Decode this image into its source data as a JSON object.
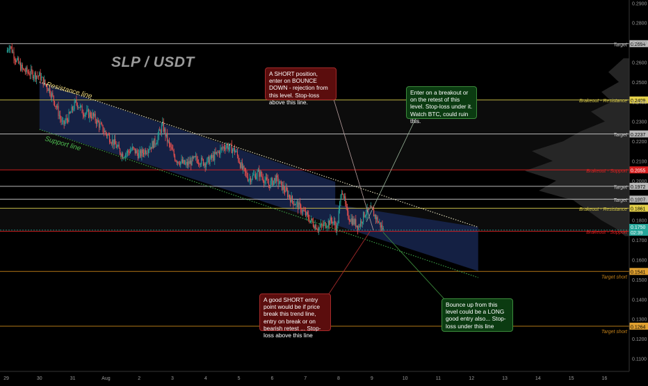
{
  "chart_data": {
    "type": "candlestick",
    "title": "SLP / USDT",
    "ylim": [
      0.1035,
      0.2915
    ],
    "y_ticks": [
      0.11,
      0.12,
      0.13,
      0.14,
      0.15,
      0.16,
      0.17,
      0.18,
      0.19,
      0.2,
      0.21,
      0.22,
      0.23,
      0.24,
      0.25,
      0.26,
      0.27,
      0.28,
      0.29
    ],
    "y_tick_labels": [
      "0.1100",
      "0.1200",
      "0.1300",
      "0.1400",
      "0.1500",
      "0.1600",
      "0.1700",
      "0.1800",
      "0.1900",
      "0.2000",
      "0.2100",
      "0.2200",
      "0.2300",
      "0.2400",
      "0.2500",
      "0.2600",
      "0.2700",
      "0.2800",
      "0.2900"
    ],
    "x_ticks": [
      {
        "t": 0.0,
        "label": "29"
      },
      {
        "t": 1.0,
        "label": "30"
      },
      {
        "t": 2.0,
        "label": "31"
      },
      {
        "t": 3.0,
        "label": "Aug"
      },
      {
        "t": 4.0,
        "label": "2"
      },
      {
        "t": 5.0,
        "label": "3"
      },
      {
        "t": 6.0,
        "label": "4"
      },
      {
        "t": 7.0,
        "label": "5"
      },
      {
        "t": 8.0,
        "label": "6"
      },
      {
        "t": 9.0,
        "label": "7"
      },
      {
        "t": 10.0,
        "label": "8"
      },
      {
        "t": 11.0,
        "label": "9"
      },
      {
        "t": 12.0,
        "label": "10"
      },
      {
        "t": 13.0,
        "label": "11"
      },
      {
        "t": 14.0,
        "label": "12"
      },
      {
        "t": 15.0,
        "label": "13"
      },
      {
        "t": 16.0,
        "label": "14"
      },
      {
        "t": 17.0,
        "label": "15"
      },
      {
        "t": 18.0,
        "label": "16"
      }
    ],
    "price_path": [
      [
        0.0,
        0.265
      ],
      [
        0.1,
        0.269
      ],
      [
        0.3,
        0.261
      ],
      [
        0.5,
        0.256
      ],
      [
        0.8,
        0.254
      ],
      [
        1.0,
        0.253
      ],
      [
        1.3,
        0.246
      ],
      [
        1.5,
        0.238
      ],
      [
        1.7,
        0.228
      ],
      [
        1.9,
        0.233
      ],
      [
        2.1,
        0.24
      ],
      [
        2.3,
        0.235
      ],
      [
        2.6,
        0.233
      ],
      [
        2.9,
        0.226
      ],
      [
        3.2,
        0.22
      ],
      [
        3.5,
        0.213
      ],
      [
        3.8,
        0.216
      ],
      [
        4.0,
        0.213
      ],
      [
        4.3,
        0.217
      ],
      [
        4.5,
        0.22
      ],
      [
        4.7,
        0.228
      ],
      [
        4.9,
        0.218
      ],
      [
        5.1,
        0.211
      ],
      [
        5.4,
        0.208
      ],
      [
        5.7,
        0.211
      ],
      [
        6.0,
        0.209
      ],
      [
        6.3,
        0.213
      ],
      [
        6.6,
        0.218
      ],
      [
        6.9,
        0.215
      ],
      [
        7.1,
        0.206
      ],
      [
        7.3,
        0.201
      ],
      [
        7.6,
        0.204
      ],
      [
        7.9,
        0.198
      ],
      [
        8.1,
        0.201
      ],
      [
        8.4,
        0.195
      ],
      [
        8.6,
        0.19
      ],
      [
        8.8,
        0.187
      ],
      [
        9.0,
        0.183
      ],
      [
        9.2,
        0.179
      ],
      [
        9.4,
        0.176
      ],
      [
        9.6,
        0.178
      ],
      [
        9.8,
        0.18
      ],
      [
        9.95,
        0.176
      ],
      [
        10.1,
        0.197
      ],
      [
        10.25,
        0.183
      ],
      [
        10.4,
        0.18
      ],
      [
        10.6,
        0.177
      ],
      [
        10.8,
        0.184
      ],
      [
        11.0,
        0.185
      ],
      [
        11.2,
        0.179
      ],
      [
        11.35,
        0.175
      ]
    ],
    "levels": [
      {
        "price": 0.2694,
        "label": "Target",
        "tag": "0.2694",
        "color": "#cfcfcf",
        "tag_bg": "#b8b8b8",
        "tag_fg": "#000"
      },
      {
        "price": 0.2409,
        "label": "Brakeout - Resistance",
        "tag": "0.2409",
        "color": "#d6c84a",
        "tag_bg": "#e6d24a",
        "tag_fg": "#000"
      },
      {
        "price": 0.2237,
        "label": "Target",
        "tag": "0.2237",
        "color": "#cfcfcf",
        "tag_bg": "#b8b8b8",
        "tag_fg": "#000"
      },
      {
        "price": 0.2055,
        "label": "Brakeout - Support",
        "tag": "0.2055",
        "color": "#e02020",
        "tag_bg": "#d81f1f",
        "tag_fg": "#fff"
      },
      {
        "price": 0.1972,
        "label": "Target",
        "tag": "0.1972",
        "color": "#cfcfcf",
        "tag_bg": "#b8b8b8",
        "tag_fg": "#000"
      },
      {
        "price": 0.1907,
        "label": "Target",
        "tag": "0.1907",
        "color": "#cfcfcf",
        "tag_bg": "#b8b8b8",
        "tag_fg": "#000"
      },
      {
        "price": 0.1861,
        "label": "Brakeout - Resistance",
        "tag": "0.1861",
        "color": "#d6c84a",
        "tag_bg": "#e6d24a",
        "tag_fg": "#000"
      },
      {
        "price": 0.1744,
        "label": "Brakeout - Support",
        "tag": "0.1744",
        "color": "#e02020",
        "tag_bg": "#d81f1f",
        "tag_fg": "#fff"
      },
      {
        "price": 0.1541,
        "label": "Target short",
        "tag": "0.1541",
        "color": "#c8841a",
        "tag_bg": "#e0a030",
        "tag_fg": "#000"
      },
      {
        "price": 0.1264,
        "label": "Target short",
        "tag": "0.1264",
        "color": "#c8841a",
        "tag_bg": "#e0a030",
        "tag_fg": "#000"
      }
    ],
    "current_price": {
      "price": 0.175,
      "tag": "0.1750",
      "countdown": "02:39",
      "color": "#26a69a"
    },
    "trendlines": [
      {
        "name": "Resistance line",
        "from": [
          1.0,
          0.25
        ],
        "to": [
          14.2,
          0.1765
        ],
        "color": "#e8e4c0"
      },
      {
        "name": "Support line",
        "from": [
          1.0,
          0.226
        ],
        "to": [
          14.2,
          0.151
        ],
        "color": "#3fa94a"
      }
    ]
  },
  "annotations": {
    "short_bounce": "A SHORT position, enter on BOUNCE DOWN - rejection from this level. Stop-loss above this line.",
    "breakout_long": "Enter on a breakout or on the retest of this level. Stop-loss under it. Watch BTC, could ruin this.",
    "short_entry": "A good SHORT entry point would be if price break this trend line, entry on break or on bearish retest ... Stop-loss above this line",
    "bounce_long": "Bounce up from this level could be a LONG good entry also... Stop-loss under this line"
  },
  "colors": {
    "background": "#000000",
    "channel_fill": "#16244a",
    "bull": "#26a69a",
    "bear": "#ef5350",
    "axis_text": "#9b9b9b"
  }
}
